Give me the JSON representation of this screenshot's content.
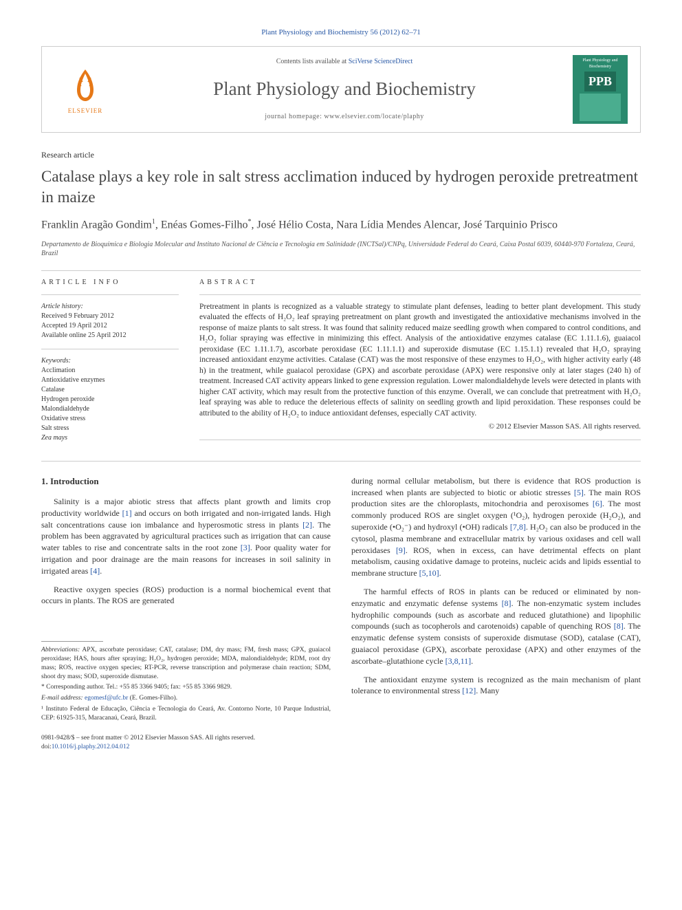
{
  "citation": "Plant Physiology and Biochemistry 56 (2012) 62–71",
  "banner": {
    "elsevier_label": "ELSEVIER",
    "contents_prefix": "Contents lists available at ",
    "contents_link": "SciVerse ScienceDirect",
    "journal_name": "Plant Physiology and Biochemistry",
    "homepage_prefix": "journal homepage: ",
    "homepage_url": "www.elsevier.com/locate/plaphy",
    "cover_top": "Plant Physiology and Biochemistry",
    "cover_badge": "PPB"
  },
  "article_type": "Research article",
  "title": "Catalase plays a key role in salt stress acclimation induced by hydrogen peroxide pretreatment in maize",
  "authors_html": "Franklin Aragão Gondim<sup>1</sup>, Enéas Gomes-Filho<sup>*</sup>, José Hélio Costa, Nara Lídia Mendes Alencar, José Tarquinio Prisco",
  "affiliation": "Departamento de Bioquímica e Biologia Molecular and Instituto Nacional de Ciência e Tecnologia em Salinidade (INCTSal)/CNPq, Universidade Federal do Ceará, Caixa Postal 6039, 60440-970 Fortaleza, Ceará, Brazil",
  "info": {
    "label": "ARTICLE INFO",
    "history_heading": "Article history:",
    "received": "Received 9 February 2012",
    "accepted": "Accepted 19 April 2012",
    "online": "Available online 25 April 2012",
    "keywords_heading": "Keywords:",
    "keywords": [
      "Acclimation",
      "Antioxidative enzymes",
      "Catalase",
      "Hydrogen peroxide",
      "Malondialdehyde",
      "Oxidative stress",
      "Salt stress",
      "Zea mays"
    ]
  },
  "abstract": {
    "label": "ABSTRACT",
    "text": "Pretreatment in plants is recognized as a valuable strategy to stimulate plant defenses, leading to better plant development. This study evaluated the effects of H₂O₂ leaf spraying pretreatment on plant growth and investigated the antioxidative mechanisms involved in the response of maize plants to salt stress. It was found that salinity reduced maize seedling growth when compared to control conditions, and H₂O₂ foliar spraying was effective in minimizing this effect. Analysis of the antioxidative enzymes catalase (EC 1.11.1.6), guaiacol peroxidase (EC 1.11.1.7), ascorbate peroxidase (EC 1.11.1.1) and superoxide dismutase (EC 1.15.1.1) revealed that H₂O₂ spraying increased antioxidant enzyme activities. Catalase (CAT) was the most responsive of these enzymes to H₂O₂, with higher activity early (48 h) in the treatment, while guaiacol peroxidase (GPX) and ascorbate peroxidase (APX) were responsive only at later stages (240 h) of treatment. Increased CAT activity appears linked to gene expression regulation. Lower malondialdehyde levels were detected in plants with higher CAT activity, which may result from the protective function of this enzyme. Overall, we can conclude that pretreatment with H₂O₂ leaf spraying was able to reduce the deleterious effects of salinity on seedling growth and lipid peroxidation. These responses could be attributed to the ability of H₂O₂ to induce antioxidant defenses, especially CAT activity.",
    "copyright": "© 2012 Elsevier Masson SAS. All rights reserved."
  },
  "body": {
    "heading": "1. Introduction",
    "col1_p1": "Salinity is a major abiotic stress that affects plant growth and limits crop productivity worldwide [1] and occurs on both irrigated and non-irrigated lands. High salt concentrations cause ion imbalance and hyperosmotic stress in plants [2]. The problem has been aggravated by agricultural practices such as irrigation that can cause water tables to rise and concentrate salts in the root zone [3]. Poor quality water for irrigation and poor drainage are the main reasons for increases in soil salinity in irrigated areas [4].",
    "col1_p2": "Reactive oxygen species (ROS) production is a normal biochemical event that occurs in plants. The ROS are generated",
    "col2_p1": "during normal cellular metabolism, but there is evidence that ROS production is increased when plants are subjected to biotic or abiotic stresses [5]. The main ROS production sites are the chloroplasts, mitochondria and peroxisomes [6]. The most commonly produced ROS are singlet oxygen (¹O₂), hydrogen peroxide (H₂O₂), and superoxide (•O₂⁻) and hydroxyl (•OH) radicals [7,8]. H₂O₂ can also be produced in the cytosol, plasma membrane and extracellular matrix by various oxidases and cell wall peroxidases [9]. ROS, when in excess, can have detrimental effects on plant metabolism, causing oxidative damage to proteins, nucleic acids and lipids essential to membrane structure [5,10].",
    "col2_p2": "The harmful effects of ROS in plants can be reduced or eliminated by non-enzymatic and enzymatic defense systems [8]. The non-enzymatic system includes hydrophilic compounds (such as ascorbate and reduced glutathione) and lipophilic compounds (such as tocopherols and carotenoids) capable of quenching ROS [8]. The enzymatic defense system consists of superoxide dismutase (SOD), catalase (CAT), guaiacol peroxidase (GPX), ascorbate peroxidase (APX) and other enzymes of the ascorbate–glutathione cycle [3,8,11].",
    "col2_p3": "The antioxidant enzyme system is recognized as the main mechanism of plant tolerance to environmental stress [12]. Many"
  },
  "footnotes": {
    "abbrev_label": "Abbreviations:",
    "abbrev_text": " APX, ascorbate peroxidase; CAT, catalase; DM, dry mass; FM, fresh mass; GPX, guaiacol peroxidase; HAS, hours after spraying; H₂O₂, hydrogen peroxide; MDA, malondialdehyde; RDM, root dry mass; ROS, reactive oxygen species; RT-PCR, reverse transcription and polymerase chain reaction; SDM, shoot dry mass; SOD, superoxide dismutase.",
    "corr_label": "* Corresponding author. ",
    "corr_text": "Tel.: +55 85 3366 9405; fax: +55 85 3366 9829.",
    "email_label": "E-mail address: ",
    "email": "egomesf@ufc.br",
    "email_suffix": " (E. Gomes-Filho).",
    "fn1_label": "¹ ",
    "fn1_text": "Instituto Federal de Educação, Ciência e Tecnologia do Ceará, Av. Contorno Norte, 10 Parque Industrial, CEP: 61925-315, Maracanaú, Ceará, Brazil."
  },
  "footer": {
    "issn": "0981-9428/$ – see front matter © 2012 Elsevier Masson SAS. All rights reserved.",
    "doi_label": "doi:",
    "doi": "10.1016/j.plaphy.2012.04.012"
  },
  "refs": {
    "r1": "[1]",
    "r2": "[2]",
    "r3": "[3]",
    "r4": "[4]",
    "r5": "[5]",
    "r6": "[6]",
    "r7": "[7,8]",
    "r8": "[8]",
    "r9": "[9]",
    "r10": "[5,10]",
    "r11": "[3,8,11]",
    "r12": "[12]"
  }
}
